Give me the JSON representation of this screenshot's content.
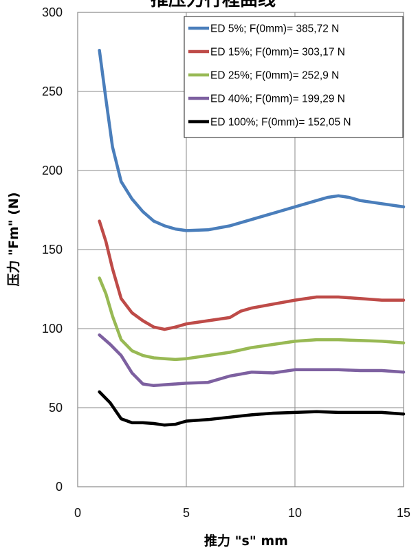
{
  "chart_data": {
    "type": "line",
    "title": "推压力行程曲线",
    "xlabel": "推力 \"s\" mm",
    "ylabel": "压力 \"Fm\" (N)",
    "xlim": [
      0,
      15
    ],
    "ylim": [
      0,
      300
    ],
    "xticks": [
      0,
      5,
      10,
      15
    ],
    "yticks": [
      0,
      50,
      100,
      150,
      200,
      250,
      300
    ],
    "xtick_labels": [
      "0",
      "5",
      "10",
      "15"
    ],
    "ytick_labels": [
      "0",
      "50",
      "100",
      "150",
      "200",
      "250",
      "300"
    ],
    "grid": true,
    "legend_position": "top-right",
    "series": [
      {
        "name": "ED 5%; F(0mm)= 385,72 N",
        "color": "#4a7ebb",
        "points": [
          [
            1,
            276
          ],
          [
            1.3,
            245
          ],
          [
            1.6,
            215
          ],
          [
            2,
            193
          ],
          [
            2.5,
            182
          ],
          [
            3,
            174
          ],
          [
            3.5,
            168
          ],
          [
            4,
            165
          ],
          [
            4.5,
            163
          ],
          [
            5,
            162
          ],
          [
            6,
            162.5
          ],
          [
            7,
            165
          ],
          [
            8,
            169
          ],
          [
            9,
            173
          ],
          [
            10,
            177
          ],
          [
            11,
            181
          ],
          [
            11.5,
            183
          ],
          [
            12,
            184
          ],
          [
            12.5,
            183
          ],
          [
            13,
            181
          ],
          [
            14,
            179
          ],
          [
            15,
            177
          ]
        ]
      },
      {
        "name": "ED 15%; F(0mm)= 303,17 N",
        "color": "#be4b48",
        "points": [
          [
            1,
            168
          ],
          [
            1.3,
            155
          ],
          [
            1.6,
            138
          ],
          [
            2,
            119
          ],
          [
            2.5,
            110
          ],
          [
            3,
            105
          ],
          [
            3.5,
            101
          ],
          [
            4,
            99.5
          ],
          [
            4.5,
            101
          ],
          [
            5,
            103
          ],
          [
            6,
            105
          ],
          [
            7,
            107
          ],
          [
            7.5,
            111
          ],
          [
            8,
            113
          ],
          [
            9,
            115.5
          ],
          [
            10,
            118
          ],
          [
            11,
            120
          ],
          [
            12,
            120
          ],
          [
            13,
            119
          ],
          [
            14,
            118
          ],
          [
            15,
            118
          ]
        ]
      },
      {
        "name": "ED 25%; F(0mm)= 252,9 N",
        "color": "#98b954",
        "points": [
          [
            1,
            132
          ],
          [
            1.3,
            122
          ],
          [
            1.6,
            108
          ],
          [
            2,
            93
          ],
          [
            2.5,
            86
          ],
          [
            3,
            83
          ],
          [
            3.5,
            81.5
          ],
          [
            4,
            81
          ],
          [
            4.5,
            80.5
          ],
          [
            5,
            81
          ],
          [
            6,
            83
          ],
          [
            7,
            85
          ],
          [
            8,
            88
          ],
          [
            9,
            90
          ],
          [
            10,
            92
          ],
          [
            11,
            93
          ],
          [
            12,
            93
          ],
          [
            13,
            92.5
          ],
          [
            14,
            92
          ],
          [
            15,
            91
          ]
        ]
      },
      {
        "name": "ED 40%; F(0mm)= 199,29 N",
        "color": "#7d60a0",
        "points": [
          [
            1,
            96
          ],
          [
            1.5,
            90
          ],
          [
            2,
            83
          ],
          [
            2.5,
            72
          ],
          [
            3,
            65
          ],
          [
            3.5,
            64
          ],
          [
            4,
            64.5
          ],
          [
            5,
            65.5
          ],
          [
            6,
            66
          ],
          [
            7,
            70
          ],
          [
            8,
            72.5
          ],
          [
            9,
            72
          ],
          [
            10,
            74
          ],
          [
            11,
            74
          ],
          [
            12,
            74
          ],
          [
            13,
            73.5
          ],
          [
            14,
            73.5
          ],
          [
            15,
            72.5
          ]
        ]
      },
      {
        "name": "ED 100%; F(0mm)= 152,05 N",
        "color": "#000000",
        "points": [
          [
            1,
            60
          ],
          [
            1.5,
            53
          ],
          [
            2,
            43
          ],
          [
            2.5,
            40.5
          ],
          [
            3,
            40.5
          ],
          [
            3.5,
            40
          ],
          [
            4,
            39
          ],
          [
            4.5,
            39.5
          ],
          [
            5,
            41.5
          ],
          [
            6,
            42.5
          ],
          [
            7,
            44
          ],
          [
            8,
            45.5
          ],
          [
            9,
            46.5
          ],
          [
            10,
            47
          ],
          [
            11,
            47.5
          ],
          [
            12,
            47
          ],
          [
            13,
            47
          ],
          [
            14,
            47
          ],
          [
            15,
            46
          ]
        ]
      }
    ]
  }
}
